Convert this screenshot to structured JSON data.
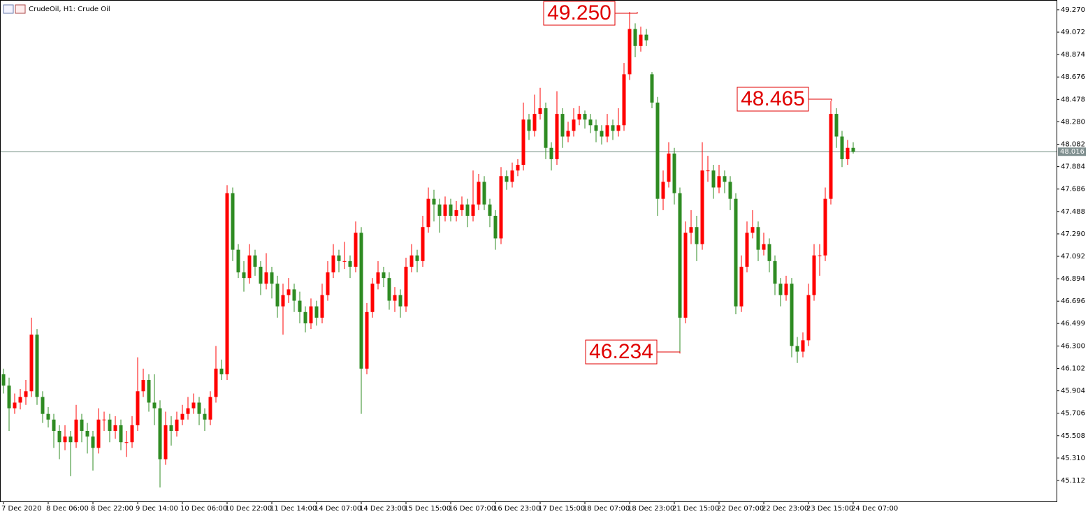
{
  "chart_data": {
    "type": "candlestick",
    "title": "CrudeOil, H1:  Crude Oil",
    "ylim": [
      44.927,
      49.356
    ],
    "yticks": [
      {
        "value": 49.27,
        "label": "49.270"
      },
      {
        "value": 49.072,
        "label": "49.072"
      },
      {
        "value": 48.874,
        "label": "48.874"
      },
      {
        "value": 48.676,
        "label": "48.676"
      },
      {
        "value": 48.478,
        "label": "48.478"
      },
      {
        "value": 48.28,
        "label": "48.280"
      },
      {
        "value": 48.082,
        "label": "48.082"
      },
      {
        "value": 47.884,
        "label": "47.884"
      },
      {
        "value": 47.686,
        "label": "47.686"
      },
      {
        "value": 47.488,
        "label": "47.488"
      },
      {
        "value": 47.29,
        "label": "47.290"
      },
      {
        "value": 47.092,
        "label": "47.092"
      },
      {
        "value": 46.894,
        "label": "46.894"
      },
      {
        "value": 46.696,
        "label": "46.696"
      },
      {
        "value": 46.499,
        "label": "46.499"
      },
      {
        "value": 46.3,
        "label": "46.300"
      },
      {
        "value": 46.102,
        "label": "46.102"
      },
      {
        "value": 45.904,
        "label": "45.904"
      },
      {
        "value": 45.706,
        "label": "45.706"
      },
      {
        "value": 45.508,
        "label": "45.508"
      },
      {
        "value": 45.31,
        "label": "45.310"
      },
      {
        "value": 45.112,
        "label": "45.112"
      }
    ],
    "up_color": "#ff0000",
    "down_color": "#2e8b22",
    "current_price": {
      "value": 48.016,
      "label": "48.016"
    },
    "annotations": [
      {
        "value": 49.25,
        "label": "49.250"
      },
      {
        "value": 48.465,
        "label": "48.465"
      },
      {
        "value": 46.234,
        "label": "46.234"
      }
    ],
    "categories": [
      "7 Dec 2020",
      null,
      null,
      null,
      null,
      null,
      null,
      null,
      "8 Dec 06:00",
      null,
      null,
      null,
      null,
      null,
      null,
      null,
      "8 Dec 22:00",
      null,
      null,
      null,
      null,
      null,
      null,
      null,
      "9 Dec 14:00",
      null,
      null,
      null,
      null,
      null,
      null,
      null,
      "10 Dec 06:00",
      null,
      null,
      null,
      null,
      null,
      null,
      null,
      "10 Dec 22:00",
      null,
      null,
      null,
      null,
      null,
      null,
      null,
      "11 Dec 14:00",
      null,
      null,
      null,
      null,
      null,
      null,
      null,
      "14 Dec 07:00",
      null,
      null,
      null,
      null,
      null,
      null,
      null,
      "14 Dec 23:00",
      null,
      null,
      null,
      null,
      null,
      null,
      null,
      "15 Dec 15:00",
      null,
      null,
      null,
      null,
      null,
      null,
      null,
      "16 Dec 07:00",
      null,
      null,
      null,
      null,
      null,
      null,
      null,
      "16 Dec 23:00",
      null,
      null,
      null,
      null,
      null,
      null,
      null,
      "17 Dec 15:00",
      null,
      null,
      null,
      null,
      null,
      null,
      null,
      "18 Dec 07:00",
      null,
      null,
      null,
      null,
      null,
      null,
      null,
      "18 Dec 23:00",
      null,
      null,
      null,
      null,
      null,
      null,
      null,
      "21 Dec 15:00",
      null,
      null,
      null,
      null,
      null,
      null,
      null,
      "22 Dec 07:00",
      null,
      null,
      null,
      null,
      null,
      null,
      null,
      "22 Dec 23:00",
      null,
      null,
      null,
      null,
      null,
      null,
      null,
      "23 Dec 15:00",
      null,
      null,
      null,
      null,
      null,
      null,
      null,
      "24 Dec 07:00"
    ],
    "ohlc": [
      [
        46.05,
        46.1,
        45.88,
        45.95
      ],
      [
        45.95,
        46.02,
        45.55,
        45.75
      ],
      [
        45.75,
        45.88,
        45.7,
        45.8
      ],
      [
        45.8,
        45.92,
        45.74,
        45.85
      ],
      [
        45.85,
        46.0,
        45.78,
        45.9
      ],
      [
        45.9,
        46.55,
        45.85,
        46.4
      ],
      [
        46.4,
        46.45,
        45.78,
        45.85
      ],
      [
        45.85,
        45.9,
        45.62,
        45.7
      ],
      [
        45.7,
        45.76,
        45.58,
        45.65
      ],
      [
        45.65,
        45.7,
        45.4,
        45.55
      ],
      [
        45.55,
        45.6,
        45.3,
        45.45
      ],
      [
        45.45,
        45.6,
        45.38,
        45.5
      ],
      [
        45.5,
        45.55,
        45.15,
        45.45
      ],
      [
        45.45,
        45.78,
        45.4,
        45.65
      ],
      [
        45.65,
        45.7,
        45.45,
        45.55
      ],
      [
        45.55,
        45.62,
        45.35,
        45.5
      ],
      [
        45.5,
        45.55,
        45.2,
        45.4
      ],
      [
        45.4,
        45.75,
        45.35,
        45.65
      ],
      [
        45.65,
        45.72,
        45.55,
        45.65
      ],
      [
        45.65,
        45.7,
        45.45,
        45.55
      ],
      [
        45.55,
        45.68,
        45.48,
        45.6
      ],
      [
        45.6,
        45.65,
        45.38,
        45.45
      ],
      [
        45.45,
        45.55,
        45.32,
        45.45
      ],
      [
        45.45,
        45.68,
        45.4,
        45.6
      ],
      [
        45.6,
        46.2,
        45.55,
        45.9
      ],
      [
        45.9,
        46.1,
        45.85,
        46.0
      ],
      [
        46.0,
        46.05,
        45.72,
        45.8
      ],
      [
        45.8,
        46.05,
        45.6,
        45.75
      ],
      [
        45.75,
        45.82,
        45.05,
        45.3
      ],
      [
        45.3,
        45.72,
        45.25,
        45.6
      ],
      [
        45.6,
        45.68,
        45.42,
        45.55
      ],
      [
        45.55,
        45.72,
        45.5,
        45.65
      ],
      [
        45.65,
        45.78,
        45.6,
        45.7
      ],
      [
        45.7,
        45.85,
        45.65,
        45.75
      ],
      [
        45.75,
        45.88,
        45.7,
        45.8
      ],
      [
        45.8,
        45.85,
        45.6,
        45.7
      ],
      [
        45.7,
        45.75,
        45.55,
        45.65
      ],
      [
        45.65,
        45.9,
        45.6,
        45.85
      ],
      [
        45.85,
        46.3,
        45.8,
        46.1
      ],
      [
        46.1,
        46.18,
        46.0,
        46.05
      ],
      [
        46.05,
        47.72,
        46.0,
        47.65
      ],
      [
        47.65,
        47.7,
        47.05,
        47.15
      ],
      [
        47.15,
        47.2,
        46.9,
        46.95
      ],
      [
        46.95,
        47.05,
        46.78,
        46.9
      ],
      [
        46.9,
        47.2,
        46.85,
        47.1
      ],
      [
        47.1,
        47.15,
        46.92,
        47.0
      ],
      [
        47.0,
        47.05,
        46.75,
        46.85
      ],
      [
        46.85,
        47.12,
        46.8,
        46.95
      ],
      [
        46.95,
        47.0,
        46.72,
        46.85
      ],
      [
        46.85,
        46.92,
        46.55,
        46.65
      ],
      [
        46.65,
        46.85,
        46.4,
        46.75
      ],
      [
        46.75,
        46.9,
        46.68,
        46.8
      ],
      [
        46.8,
        46.85,
        46.6,
        46.7
      ],
      [
        46.7,
        46.78,
        46.5,
        46.6
      ],
      [
        46.6,
        46.65,
        46.42,
        46.5
      ],
      [
        46.5,
        46.72,
        46.45,
        46.65
      ],
      [
        46.65,
        46.7,
        46.48,
        46.55
      ],
      [
        46.55,
        46.85,
        46.5,
        46.75
      ],
      [
        46.75,
        47.05,
        46.7,
        46.95
      ],
      [
        46.95,
        47.2,
        46.9,
        47.1
      ],
      [
        47.1,
        47.15,
        46.95,
        47.05
      ],
      [
        47.05,
        47.22,
        46.98,
        47.05
      ],
      [
        47.05,
        47.1,
        46.9,
        47.0
      ],
      [
        47.0,
        47.4,
        46.95,
        47.3
      ],
      [
        47.3,
        47.35,
        45.7,
        46.1
      ],
      [
        46.1,
        46.68,
        46.05,
        46.6
      ],
      [
        46.6,
        46.9,
        46.55,
        46.85
      ],
      [
        46.85,
        47.05,
        46.8,
        46.95
      ],
      [
        46.95,
        47.0,
        46.82,
        46.9
      ],
      [
        46.9,
        46.95,
        46.62,
        46.7
      ],
      [
        46.7,
        46.82,
        46.6,
        46.75
      ],
      [
        46.75,
        46.8,
        46.55,
        46.65
      ],
      [
        46.65,
        47.08,
        46.6,
        47.0
      ],
      [
        47.0,
        47.2,
        46.95,
        47.1
      ],
      [
        47.1,
        47.15,
        46.95,
        47.05
      ],
      [
        47.05,
        47.45,
        47.0,
        47.35
      ],
      [
        47.35,
        47.7,
        47.3,
        47.6
      ],
      [
        47.6,
        47.68,
        47.4,
        47.55
      ],
      [
        47.55,
        47.6,
        47.3,
        47.45
      ],
      [
        47.45,
        47.62,
        47.4,
        47.55
      ],
      [
        47.55,
        47.6,
        47.4,
        47.45
      ],
      [
        47.45,
        47.58,
        47.4,
        47.5
      ],
      [
        47.5,
        47.62,
        47.45,
        47.55
      ],
      [
        47.55,
        47.6,
        47.35,
        47.45
      ],
      [
        47.45,
        47.85,
        47.4,
        47.55
      ],
      [
        47.55,
        47.82,
        47.5,
        47.75
      ],
      [
        47.75,
        47.8,
        47.5,
        47.55
      ],
      [
        47.55,
        47.6,
        47.35,
        47.45
      ],
      [
        47.45,
        47.5,
        47.15,
        47.25
      ],
      [
        47.25,
        47.88,
        47.2,
        47.8
      ],
      [
        47.8,
        47.85,
        47.68,
        47.75
      ],
      [
        47.75,
        47.92,
        47.7,
        47.85
      ],
      [
        47.85,
        47.95,
        47.8,
        47.9
      ],
      [
        47.9,
        48.45,
        47.85,
        48.3
      ],
      [
        48.3,
        48.35,
        48.12,
        48.2
      ],
      [
        48.2,
        48.52,
        48.15,
        48.35
      ],
      [
        48.35,
        48.58,
        48.3,
        48.4
      ],
      [
        48.4,
        48.45,
        47.95,
        48.05
      ],
      [
        48.05,
        48.1,
        47.85,
        47.95
      ],
      [
        47.95,
        48.55,
        47.9,
        48.35
      ],
      [
        48.35,
        48.4,
        48.05,
        48.15
      ],
      [
        48.15,
        48.28,
        48.1,
        48.2
      ],
      [
        48.2,
        48.4,
        48.15,
        48.3
      ],
      [
        48.3,
        48.42,
        48.25,
        48.35
      ],
      [
        48.35,
        48.38,
        48.22,
        48.3
      ],
      [
        48.3,
        48.35,
        48.18,
        48.25
      ],
      [
        48.25,
        48.3,
        48.1,
        48.2
      ],
      [
        48.2,
        48.25,
        48.08,
        48.15
      ],
      [
        48.15,
        48.35,
        48.1,
        48.25
      ],
      [
        48.25,
        48.3,
        48.12,
        48.2
      ],
      [
        48.2,
        48.4,
        48.15,
        48.25
      ],
      [
        48.25,
        48.8,
        48.2,
        48.7
      ],
      [
        48.7,
        49.25,
        48.65,
        49.1
      ],
      [
        49.1,
        49.15,
        48.85,
        48.95
      ],
      [
        48.95,
        49.12,
        48.9,
        49.05
      ],
      [
        49.05,
        49.1,
        48.95,
        49.0
      ],
      [
        48.7,
        48.72,
        48.4,
        48.45
      ],
      [
        48.45,
        48.5,
        47.45,
        47.6
      ],
      [
        47.6,
        47.85,
        47.5,
        47.75
      ],
      [
        47.75,
        48.1,
        47.7,
        48.0
      ],
      [
        48.0,
        48.05,
        47.55,
        47.65
      ],
      [
        47.65,
        47.7,
        46.234,
        46.55
      ],
      [
        46.55,
        47.4,
        46.5,
        47.3
      ],
      [
        47.3,
        47.5,
        47.2,
        47.35
      ],
      [
        47.35,
        47.45,
        47.05,
        47.2
      ],
      [
        47.2,
        48.1,
        47.15,
        47.85
      ],
      [
        47.85,
        47.98,
        47.75,
        47.85
      ],
      [
        47.85,
        47.9,
        47.6,
        47.7
      ],
      [
        47.7,
        47.9,
        47.65,
        47.8
      ],
      [
        47.8,
        47.85,
        47.65,
        47.75
      ],
      [
        47.75,
        47.8,
        47.5,
        47.6
      ],
      [
        47.6,
        47.65,
        46.58,
        46.65
      ],
      [
        46.65,
        47.1,
        46.6,
        47.0
      ],
      [
        47.0,
        47.4,
        46.95,
        47.3
      ],
      [
        47.3,
        47.5,
        47.25,
        47.35
      ],
      [
        47.35,
        47.4,
        47.05,
        47.15
      ],
      [
        47.15,
        47.3,
        47.1,
        47.2
      ],
      [
        47.2,
        47.25,
        46.95,
        47.05
      ],
      [
        47.05,
        47.1,
        46.75,
        46.85
      ],
      [
        46.85,
        46.9,
        46.65,
        46.75
      ],
      [
        46.75,
        46.92,
        46.7,
        46.85
      ],
      [
        46.85,
        46.9,
        46.2,
        46.3
      ],
      [
        46.3,
        46.38,
        46.15,
        46.25
      ],
      [
        46.25,
        46.42,
        46.2,
        46.35
      ],
      [
        46.35,
        46.85,
        46.3,
        46.75
      ],
      [
        46.75,
        47.2,
        46.7,
        47.1
      ],
      [
        47.1,
        47.2,
        46.92,
        47.1
      ],
      [
        47.1,
        47.7,
        47.05,
        47.6
      ],
      [
        47.6,
        48.465,
        47.55,
        48.35
      ],
      [
        48.35,
        48.4,
        48.05,
        48.15
      ],
      [
        48.15,
        48.2,
        47.88,
        47.95
      ],
      [
        47.95,
        48.12,
        47.9,
        48.05
      ],
      [
        48.05,
        48.1,
        48.0,
        48.016
      ]
    ]
  }
}
